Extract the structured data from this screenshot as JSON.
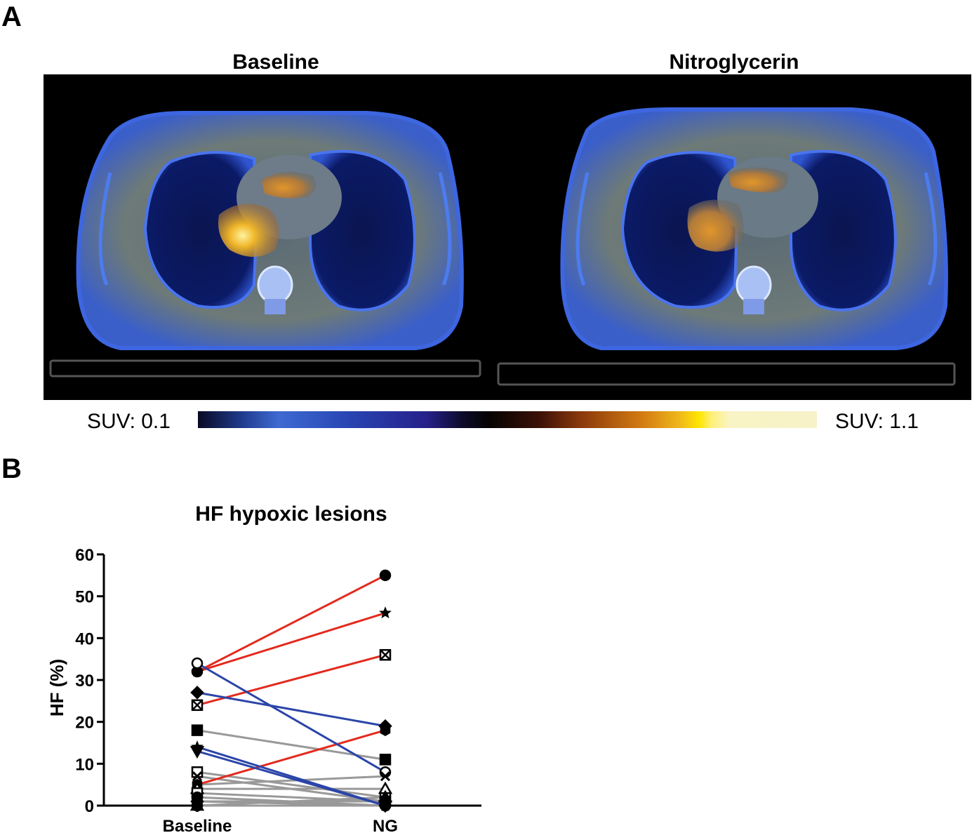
{
  "panel_a": {
    "letter": "A",
    "left_title": "Baseline",
    "right_title": "Nitroglycerin",
    "scale_min_label": "SUV: 0.1",
    "scale_max_label": "SUV: 1.1"
  },
  "panel_b": {
    "letter": "B"
  },
  "colors": {
    "red": "#e32a1e",
    "blue": "#2b45a8",
    "gray": "#999999"
  },
  "chart_data": {
    "type": "line",
    "title": "HF hypoxic lesions",
    "xlabel": "",
    "ylabel": "HF (%)",
    "categories": [
      "Baseline",
      "NG"
    ],
    "ylim": [
      0,
      60
    ],
    "yticks": [
      0,
      10,
      20,
      30,
      40,
      50,
      60
    ],
    "grid": false,
    "series": [
      {
        "values": [
          32,
          55
        ],
        "color": "red",
        "marker": "circle-filled"
      },
      {
        "values": [
          32,
          46
        ],
        "color": "red",
        "marker": "star"
      },
      {
        "values": [
          24,
          36
        ],
        "color": "red",
        "marker": "square-x"
      },
      {
        "values": [
          5,
          18
        ],
        "color": "red",
        "marker": "hexagon"
      },
      {
        "values": [
          27,
          19
        ],
        "color": "blue",
        "marker": "diamond"
      },
      {
        "values": [
          34,
          8
        ],
        "color": "blue",
        "marker": "circle-open"
      },
      {
        "values": [
          14,
          0
        ],
        "color": "blue",
        "marker": "star"
      },
      {
        "values": [
          13,
          0
        ],
        "color": "blue",
        "marker": "triangle-down"
      },
      {
        "values": [
          18,
          11
        ],
        "color": "gray",
        "marker": "square-filled"
      },
      {
        "values": [
          8,
          2
        ],
        "color": "gray",
        "marker": "square-open"
      },
      {
        "values": [
          7,
          1
        ],
        "color": "gray",
        "marker": "x"
      },
      {
        "values": [
          5,
          7
        ],
        "color": "gray",
        "marker": "x"
      },
      {
        "values": [
          4,
          4
        ],
        "color": "gray",
        "marker": "triangle-open"
      },
      {
        "values": [
          3,
          1
        ],
        "color": "gray",
        "marker": "square-open"
      },
      {
        "values": [
          2,
          0
        ],
        "color": "gray",
        "marker": "circle-filled"
      },
      {
        "values": [
          1,
          1
        ],
        "color": "gray",
        "marker": "circle-open"
      },
      {
        "values": [
          1,
          0
        ],
        "color": "gray",
        "marker": "diamond"
      },
      {
        "values": [
          0,
          2
        ],
        "color": "gray",
        "marker": "triangle-up"
      },
      {
        "values": [
          0,
          0
        ],
        "color": "gray",
        "marker": "circle-filled"
      }
    ]
  }
}
